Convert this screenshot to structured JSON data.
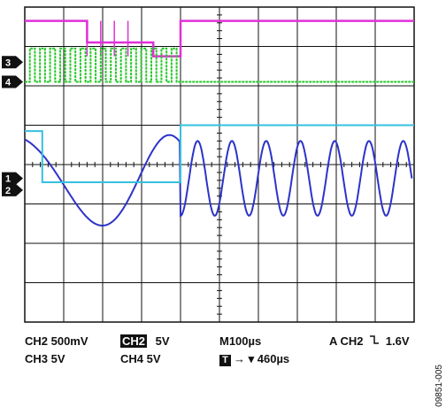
{
  "readout": {
    "ch2_scale": "CH2  500mV",
    "ch2_digital_tag": "CH2",
    "ch2_digital_scale": "5V",
    "timebase": "M100µs",
    "trigger_prefix": "A  CH2",
    "trigger_level": "1.6V",
    "ch3_scale": "CH3  5V",
    "ch4_scale": "CH4  5V",
    "trigger_marker": "T",
    "trigger_offset": "460µs",
    "figure_id": "09851-005"
  },
  "colors": {
    "ch1": "#2d33c8",
    "ch3": "#e030d8",
    "ch4": "#26c826",
    "ch2": "#35c0e0",
    "grid": "#111111"
  },
  "chart_data": {
    "type": "line",
    "xlabel": "",
    "ylabel": "",
    "grid": true,
    "x_divisions": 10,
    "y_divisions": 8,
    "timebase_per_div_us": 100,
    "series": [
      {
        "name": "1",
        "description_color": "#2d33c8",
        "x": [
          0,
          1.2,
          2.8,
          3.65,
          4.0,
          4.35,
          4.7,
          5.05,
          5.4,
          5.75,
          6.1,
          6.45,
          6.8,
          7.15,
          7.5,
          7.85,
          8.2,
          8.55,
          8.9,
          9.25,
          9.6,
          9.95
        ],
        "y": [
          3.7,
          4.8,
          2.3,
          4.6,
          4.6,
          2.7,
          4.6,
          2.7,
          4.6,
          2.7,
          4.6,
          2.7,
          4.6,
          2.7,
          4.6,
          2.7,
          4.6,
          2.7,
          4.6,
          2.7,
          4.6,
          2.7
        ]
      },
      {
        "name": "3",
        "x": [
          0,
          1.3,
          1.6,
          3.0,
          3.3,
          3.8,
          4.0,
          10.0
        ],
        "y": [
          7.65,
          7.65,
          7.1,
          7.1,
          6.75,
          6.75,
          7.65,
          7.65
        ]
      },
      {
        "name": "4",
        "x": [
          0,
          4.0,
          10.0
        ],
        "y": [
          6.1,
          6.1,
          6.1
        ]
      },
      {
        "name": "2",
        "x": [
          0,
          0.4,
          0.45,
          3.95,
          4.0,
          10.0
        ],
        "y": [
          4.85,
          4.85,
          3.55,
          3.55,
          5.0,
          5.0
        ]
      }
    ],
    "channel_markers": [
      "1",
      "3",
      "4",
      "2"
    ]
  }
}
